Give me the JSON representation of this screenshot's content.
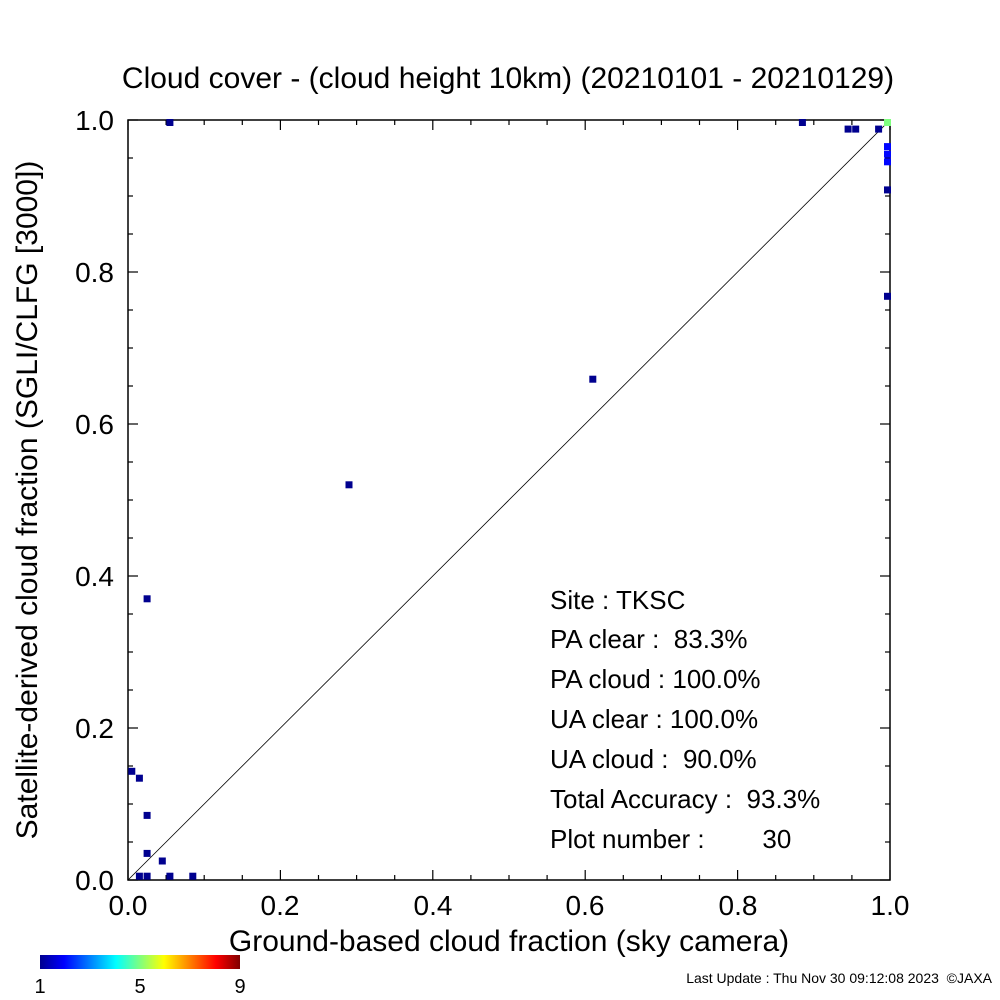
{
  "chart_data": {
    "type": "scatter",
    "title": "Cloud cover - (cloud height 10km)  (20210101 - 20210129)",
    "xlabel": "Ground-based cloud fraction (sky camera)",
    "ylabel": "Satellite-derived cloud fraction (SGLI/CLFG [3000])",
    "xlim": [
      0.0,
      1.0
    ],
    "ylim": [
      0.0,
      1.0
    ],
    "xticks": [
      "0.0",
      "0.2",
      "0.4",
      "0.6",
      "0.8",
      "1.0"
    ],
    "yticks": [
      "0.0",
      "0.2",
      "0.4",
      "0.6",
      "0.8",
      "1.0"
    ],
    "grid": false,
    "reference_line": "1:1 diagonal",
    "point_color_scale": {
      "min": "1",
      "mid": "5",
      "max": "9",
      "colormap": "rainbow (blue to red)"
    },
    "points": [
      {
        "x": 0.055,
        "y": 0.998,
        "count": 1
      },
      {
        "x": 0.885,
        "y": 0.998,
        "count": 1
      },
      {
        "x": 0.945,
        "y": 0.988,
        "count": 1
      },
      {
        "x": 0.955,
        "y": 0.988,
        "count": 1
      },
      {
        "x": 0.985,
        "y": 0.988,
        "count": 1
      },
      {
        "x": 0.997,
        "y": 0.998,
        "count": 5
      },
      {
        "x": 1.0,
        "y": 0.965,
        "count": 2
      },
      {
        "x": 1.0,
        "y": 0.955,
        "count": 2
      },
      {
        "x": 1.0,
        "y": 0.945,
        "count": 2
      },
      {
        "x": 1.0,
        "y": 0.908,
        "count": 1
      },
      {
        "x": 1.0,
        "y": 0.768,
        "count": 1
      },
      {
        "x": 0.61,
        "y": 0.659,
        "count": 1
      },
      {
        "x": 0.29,
        "y": 0.52,
        "count": 1
      },
      {
        "x": 0.025,
        "y": 0.37,
        "count": 1
      },
      {
        "x": 0.005,
        "y": 0.143,
        "count": 1
      },
      {
        "x": 0.015,
        "y": 0.134,
        "count": 1
      },
      {
        "x": 0.025,
        "y": 0.085,
        "count": 1
      },
      {
        "x": 0.025,
        "y": 0.035,
        "count": 1
      },
      {
        "x": 0.045,
        "y": 0.025,
        "count": 1
      },
      {
        "x": 0.015,
        "y": 0.005,
        "count": 1
      },
      {
        "x": 0.025,
        "y": 0.005,
        "count": 1
      },
      {
        "x": 0.055,
        "y": 0.005,
        "count": 1
      },
      {
        "x": 0.085,
        "y": 0.005,
        "count": 1
      }
    ],
    "stats": [
      {
        "label": "Site : TKSC"
      },
      {
        "label": "PA clear :  83.3%"
      },
      {
        "label": "PA cloud : 100.0%"
      },
      {
        "label": "UA clear : 100.0%"
      },
      {
        "label": "UA cloud :  90.0%"
      },
      {
        "label": "Total Accuracy :  93.3%"
      },
      {
        "label": "Plot number :        30"
      }
    ]
  },
  "footer": "Last Update : Thu Nov 30 09:12:08 2023  ©JAXA"
}
